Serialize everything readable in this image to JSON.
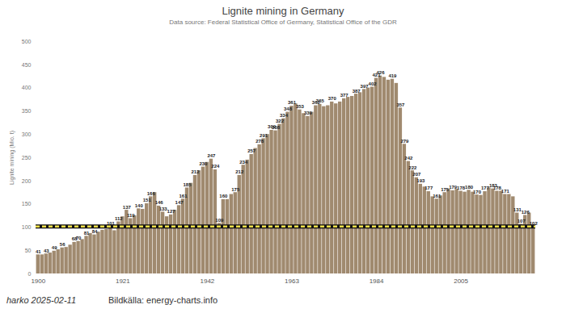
{
  "chart_data": {
    "type": "bar",
    "title": "Lignite mining in Germany",
    "subtitle": "Data source: Federal Statistical Office of Germany, Statistical Office of the GDR",
    "y_label": "Lignite mining (Mio. t)",
    "caption": "harko 2025-02-11",
    "source": "Bildkälla: energy-charts.info",
    "x": [
      1900,
      1901,
      1902,
      1903,
      1904,
      1905,
      1906,
      1907,
      1908,
      1909,
      1910,
      1911,
      1912,
      1913,
      1914,
      1915,
      1916,
      1917,
      1918,
      1919,
      1920,
      1921,
      1922,
      1923,
      1924,
      1925,
      1926,
      1927,
      1928,
      1929,
      1930,
      1931,
      1932,
      1933,
      1934,
      1935,
      1936,
      1937,
      1938,
      1939,
      1940,
      1941,
      1942,
      1943,
      1944,
      1945,
      1946,
      1947,
      1948,
      1949,
      1950,
      1951,
      1952,
      1953,
      1954,
      1955,
      1956,
      1957,
      1958,
      1959,
      1960,
      1961,
      1962,
      1963,
      1964,
      1965,
      1966,
      1967,
      1968,
      1969,
      1970,
      1971,
      1972,
      1973,
      1974,
      1975,
      1976,
      1977,
      1978,
      1979,
      1980,
      1981,
      1982,
      1983,
      1984,
      1985,
      1986,
      1987,
      1988,
      1989,
      1990,
      1991,
      1992,
      1993,
      1994,
      1995,
      1996,
      1997,
      1998,
      1999,
      2000,
      2001,
      2002,
      2003,
      2004,
      2005,
      2006,
      2007,
      2008,
      2009,
      2010,
      2011,
      2012,
      2013,
      2014,
      2015,
      2016,
      2017,
      2018,
      2019,
      2020,
      2021,
      2022,
      2023
    ],
    "values": [
      41,
      41,
      43,
      45,
      49,
      52,
      56,
      57,
      62,
      68,
      70,
      74,
      81,
      87,
      84,
      90,
      94,
      96,
      101,
      93,
      112,
      123,
      137,
      119,
      125,
      140,
      139,
      151,
      166,
      175,
      146,
      133,
      123,
      127,
      137,
      147,
      161,
      185,
      195,
      212,
      222,
      230,
      240,
      247,
      224,
      109,
      160,
      160,
      171,
      175,
      212,
      234,
      245,
      257,
      270,
      278,
      291,
      300,
      309,
      308,
      322,
      334,
      348,
      361,
      366,
      353,
      345,
      339,
      348,
      362,
      365,
      360,
      362,
      370,
      366,
      370,
      377,
      380,
      382,
      387,
      390,
      397,
      400,
      402,
      421,
      426,
      423,
      417,
      419,
      410,
      357,
      279,
      242,
      222,
      207,
      193,
      187,
      177,
      166,
      161,
      168,
      175,
      182,
      179,
      182,
      178,
      176,
      180,
      176,
      170,
      169,
      177,
      185,
      183,
      178,
      178,
      171,
      171,
      166,
      131,
      107,
      126,
      131,
      102
    ],
    "value_labels": [
      "41",
      null,
      "43",
      null,
      "49",
      null,
      "56",
      null,
      null,
      "68",
      "70",
      null,
      "81",
      null,
      "84",
      null,
      "94",
      null,
      "101",
      null,
      "112",
      null,
      "137",
      "119",
      null,
      "140",
      null,
      "151",
      "166",
      null,
      "146",
      "133",
      null,
      "127",
      null,
      "147",
      "161",
      "185",
      null,
      "212",
      null,
      "230",
      null,
      "247",
      "224",
      "109",
      "160",
      null,
      null,
      "175",
      "212",
      "234",
      null,
      "257",
      null,
      "278",
      "291",
      null,
      "309",
      "308",
      "322",
      "334",
      "348",
      "361",
      null,
      "353",
      null,
      "339",
      null,
      "362",
      "365",
      null,
      null,
      "370",
      null,
      null,
      "377",
      null,
      null,
      "387",
      null,
      "397",
      null,
      "402",
      "421",
      "426",
      null,
      null,
      "419",
      null,
      "357",
      "279",
      "242",
      "222",
      "207",
      "193",
      null,
      "177",
      null,
      "161",
      null,
      "175",
      null,
      "179",
      null,
      "178",
      null,
      "180",
      null,
      "170",
      null,
      "177",
      null,
      "183",
      "178",
      null,
      "171",
      null,
      null,
      "131",
      "107",
      "126",
      null,
      "102"
    ],
    "color": "#a08a6f",
    "reference_line": 102,
    "xticks": [
      1900,
      1921,
      1942,
      1963,
      1984,
      2005
    ],
    "ylim": [
      0,
      500
    ],
    "yticks": [
      0,
      50,
      100,
      150,
      200,
      250,
      300,
      350,
      400,
      450,
      500
    ],
    "grid": false,
    "data_labels": true
  }
}
